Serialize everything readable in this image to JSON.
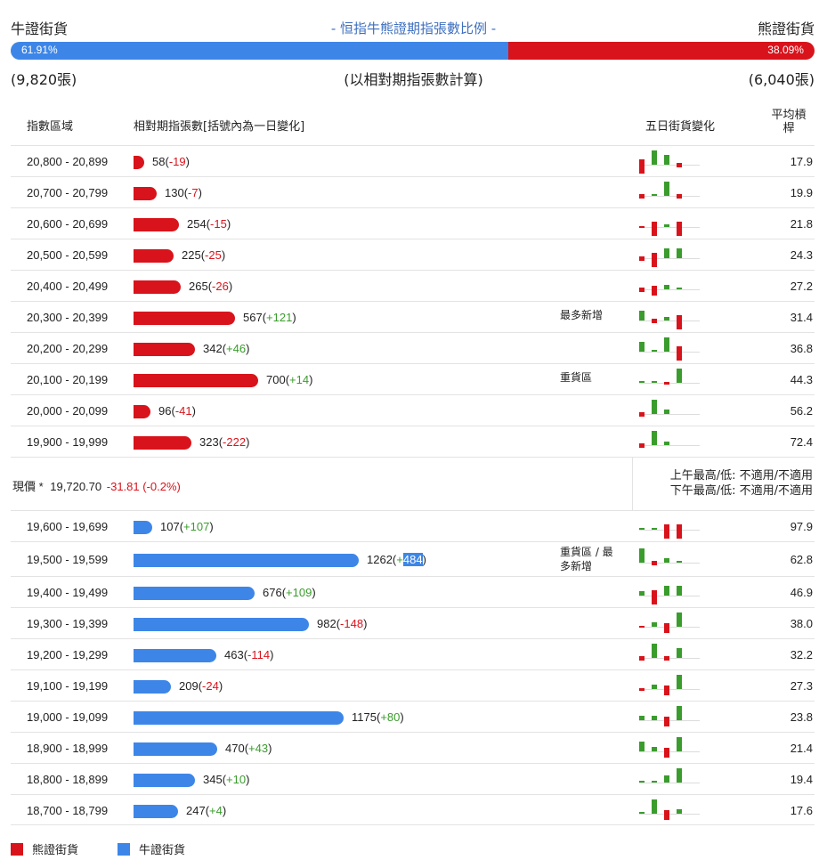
{
  "header": {
    "bull_label": "牛證街貨",
    "bear_label": "熊證街貨",
    "title": "- 恒指牛熊證期指張數比例 -",
    "bull_pct": "61.91%",
    "bear_pct": "38.09%",
    "bull_ratio": 61.91,
    "bull_count": "(9,820張)",
    "bear_count": "(6,040張)",
    "basis": "(以相對期指張數計算)"
  },
  "columns": {
    "zone": "指數區域",
    "contracts": "相對期指張數[括號內為一日變化]",
    "five_day": "五日街貨變化",
    "avg": "平均槓桿"
  },
  "price": {
    "label": "現價 *",
    "value": "19,720.70",
    "change": "-31.81 (-0.2%)",
    "am_range": "上午最高/低: 不適用/不適用",
    "pm_range": "下午最高/低: 不適用/不適用"
  },
  "legend": {
    "bear": "熊證街貨",
    "bull": "牛證街貨"
  },
  "colors": {
    "bull": "#3d86e8",
    "bear": "#d9131b",
    "up": "#3a9c2d",
    "down": "#d9131b",
    "title": "#3d6fbf"
  },
  "chart_data": {
    "type": "bar",
    "title": "恒指牛熊證期指張數比例",
    "bear_rows": [
      {
        "zone": "20,800 - 20,899",
        "value": 58,
        "change": "-19",
        "avg": "17.9",
        "note": "",
        "spark": [
          -3,
          3,
          2,
          -1,
          0
        ]
      },
      {
        "zone": "20,700 - 20,799",
        "value": 130,
        "change": "-7",
        "avg": "19.9",
        "note": "",
        "spark": [
          -1,
          0.2,
          3,
          -1,
          0
        ]
      },
      {
        "zone": "20,600 - 20,699",
        "value": 254,
        "change": "-15",
        "avg": "21.8",
        "note": "",
        "spark": [
          -0.3,
          -3,
          0.5,
          -3,
          0
        ]
      },
      {
        "zone": "20,500 - 20,599",
        "value": 225,
        "change": "-25",
        "avg": "24.3",
        "note": "",
        "spark": [
          -1,
          -3,
          2,
          2,
          0
        ]
      },
      {
        "zone": "20,400 - 20,499",
        "value": 265,
        "change": "-26",
        "avg": "27.2",
        "note": "",
        "spark": [
          -1,
          -2,
          1,
          0.2,
          0
        ]
      },
      {
        "zone": "20,300 - 20,399",
        "value": 567,
        "change": "+121",
        "avg": "31.4",
        "note": "最多新增",
        "spark": [
          2,
          -1,
          0.8,
          -3,
          0
        ]
      },
      {
        "zone": "20,200 - 20,299",
        "value": 342,
        "change": "+46",
        "avg": "36.8",
        "note": "",
        "spark": [
          2,
          0.3,
          3,
          -3,
          0
        ]
      },
      {
        "zone": "20,100 - 20,199",
        "value": 700,
        "change": "+14",
        "avg": "44.3",
        "note": "重貨區",
        "spark": [
          0.2,
          0.3,
          -0.5,
          3,
          0
        ]
      },
      {
        "zone": "20,000 - 20,099",
        "value": 96,
        "change": "-41",
        "avg": "56.2",
        "note": "",
        "spark": [
          -1,
          3,
          1,
          0,
          0
        ]
      },
      {
        "zone": "19,900 - 19,999",
        "value": 323,
        "change": "-222",
        "avg": "72.4",
        "note": "",
        "spark": [
          -1,
          3,
          0.8,
          0,
          0
        ]
      }
    ],
    "bull_rows": [
      {
        "zone": "19,600 - 19,699",
        "value": 107,
        "change": "+107",
        "avg": "97.9",
        "note": "",
        "spark": [
          0.2,
          0.3,
          -3,
          -3,
          0
        ]
      },
      {
        "zone": "19,500 - 19,599",
        "value": 1262,
        "change": "+484",
        "change_prefix": "+",
        "change_num": "484",
        "avg": "62.8",
        "note_lines": [
          "重貨區 / 最",
          "多新增"
        ],
        "note": "重貨區 / 最多新增",
        "spark": [
          3,
          -1,
          1,
          0.2,
          0
        ]
      },
      {
        "zone": "19,400 - 19,499",
        "value": 676,
        "change": "+109",
        "avg": "46.9",
        "note": "",
        "spark": [
          1,
          -3,
          2,
          2,
          0
        ]
      },
      {
        "zone": "19,300 - 19,399",
        "value": 982,
        "change": "-148",
        "avg": "38.0",
        "note": "",
        "spark": [
          -0.3,
          1,
          -2,
          3,
          0
        ]
      },
      {
        "zone": "19,200 - 19,299",
        "value": 463,
        "change": "-114",
        "avg": "32.2",
        "note": "",
        "spark": [
          -1,
          3,
          -1,
          2,
          0
        ]
      },
      {
        "zone": "19,100 - 19,199",
        "value": 209,
        "change": "-24",
        "avg": "27.3",
        "note": "",
        "spark": [
          -0.5,
          1,
          -2,
          3,
          0
        ]
      },
      {
        "zone": "19,000 - 19,099",
        "value": 1175,
        "change": "+80",
        "avg": "23.8",
        "note": "",
        "spark": [
          1,
          1,
          -2,
          3,
          0
        ]
      },
      {
        "zone": "18,900 - 18,999",
        "value": 470,
        "change": "+43",
        "avg": "21.4",
        "note": "",
        "spark": [
          2,
          1,
          -2,
          3,
          0
        ]
      },
      {
        "zone": "18,800 - 18,899",
        "value": 345,
        "change": "+10",
        "avg": "19.4",
        "note": "",
        "spark": [
          0.4,
          0.4,
          1.5,
          3,
          0
        ]
      },
      {
        "zone": "18,700 - 18,799",
        "value": 247,
        "change": "+4",
        "avg": "17.6",
        "note": "",
        "spark": [
          0.3,
          3,
          -2,
          1,
          0
        ]
      }
    ],
    "max_value": 1262,
    "xlabel": "",
    "ylabel": ""
  }
}
